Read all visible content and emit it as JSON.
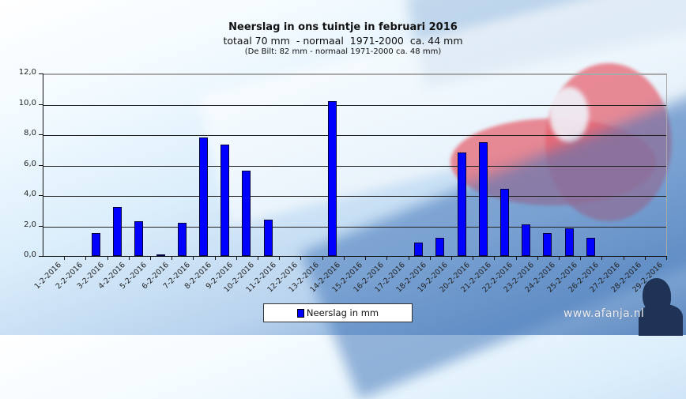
{
  "chart_data": {
    "type": "bar",
    "title": "Neerslag in ons tuintje in februari 2016",
    "subtitle": "totaal 70 mm  - normaal  1971-2000  ca. 44 mm",
    "subtitle2": "(De Bilt: 82 mm - normaal 1971-2000 ca. 48 mm)",
    "xlabel": "",
    "ylabel": "",
    "ylim": [
      0,
      12
    ],
    "yticks": [
      "0,0",
      "2,0",
      "4,0",
      "6,0",
      "8,0",
      "10,0",
      "12,0"
    ],
    "grid": true,
    "legend_position": "bottom",
    "categories": [
      "1-2-2016",
      "2-2-2016",
      "3-2-2016",
      "4-2-2016",
      "5-2-2016",
      "6-2-2016",
      "7-2-2016",
      "8-2-2016",
      "9-2-2016",
      "10-2-2016",
      "11-2-2016",
      "12-2-2016",
      "13-2-2016",
      "14-2-2016",
      "15-2-2016",
      "16-2-2016",
      "17-2-2016",
      "18-2-2016",
      "19-2-2016",
      "20-2-2016",
      "21-2-2016",
      "22-2-2016",
      "23-2-2016",
      "24-2-2016",
      "25-2-2016",
      "26-2-2016",
      "27-2-2016",
      "28-2-2016",
      "29-2-2016"
    ],
    "series": [
      {
        "name": "Neerslag in mm",
        "color": "#0000ff",
        "values": [
          0,
          0,
          1.5,
          3.2,
          2.3,
          0.1,
          2.2,
          7.8,
          7.3,
          5.6,
          2.4,
          0,
          0,
          10.2,
          0,
          0,
          0,
          0.9,
          1.2,
          6.8,
          7.5,
          4.4,
          2.1,
          1.5,
          1.8,
          1.2,
          0,
          0,
          0
        ]
      }
    ]
  },
  "legend": {
    "label": "Neerslag in mm"
  },
  "watermark": "www.afanja.nl"
}
